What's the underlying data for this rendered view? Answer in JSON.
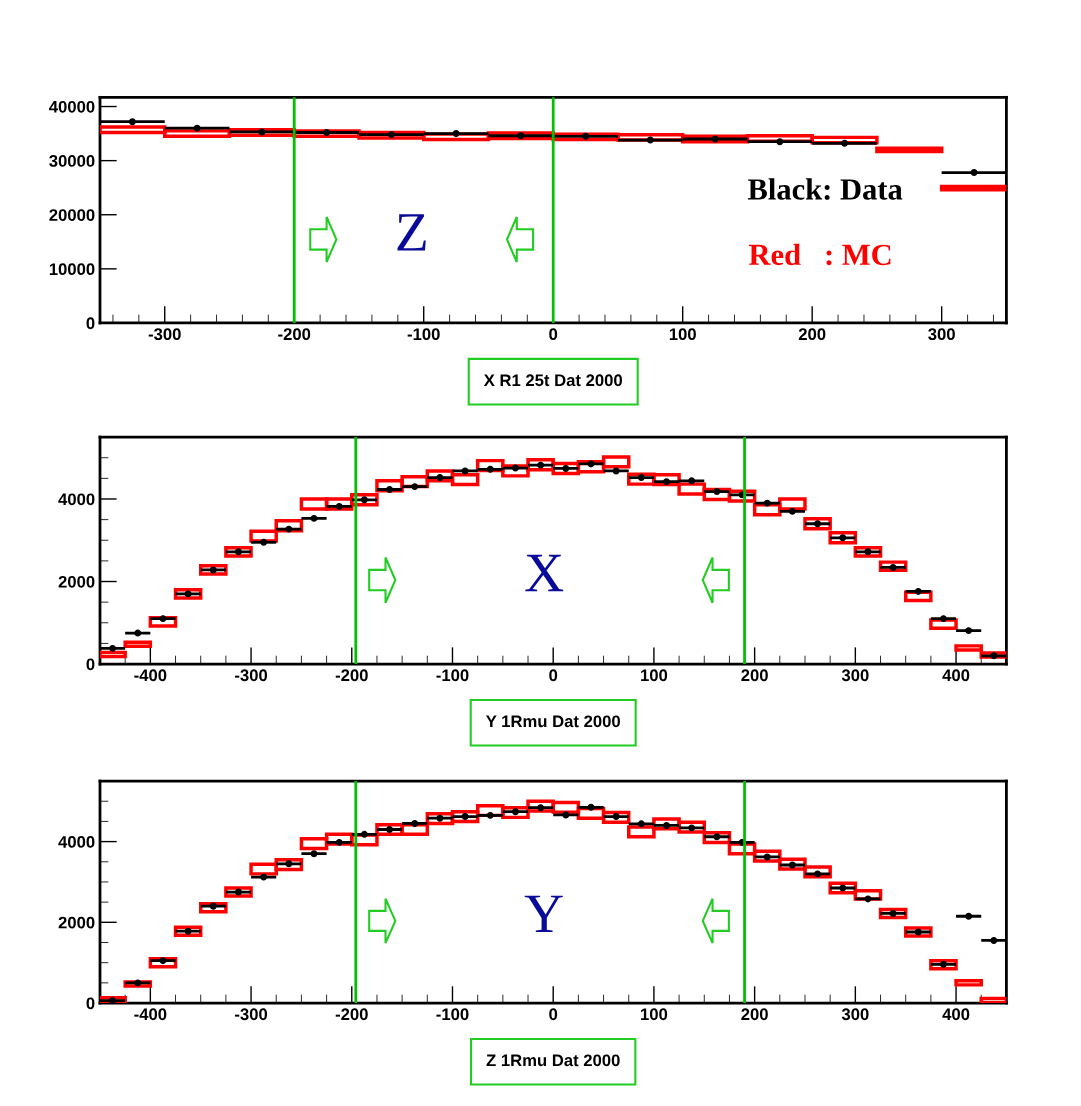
{
  "chart_data": [
    {
      "type": "scatter",
      "xlabel": "X R1 25t Dat 2000",
      "xlim": [
        -350,
        350
      ],
      "xticks": [
        -300,
        -200,
        -100,
        0,
        100,
        200,
        300
      ],
      "ylim": [
        0,
        41700
      ],
      "yticks": [
        0,
        10000,
        20000,
        30000,
        40000
      ],
      "grid": false,
      "legend": false,
      "x": [
        -325,
        -275,
        -225,
        -175,
        -125,
        -75,
        -25,
        25,
        75,
        125,
        175,
        225,
        275,
        325
      ],
      "series": [
        {
          "color": "#000000",
          "marker": "circle",
          "values": [
            37200,
            36000,
            35300,
            35200,
            34800,
            35000,
            34600,
            34500,
            33800,
            34000,
            33500,
            33200,
            null,
            27800
          ],
          "xerrors": [
            25,
            25,
            25,
            25,
            25,
            25,
            25,
            25,
            25,
            25,
            25,
            25,
            null,
            25
          ]
        },
        {
          "type": "bar",
          "color": "#ff0000",
          "base": [
            35200,
            34500,
            34700,
            34500,
            34200,
            33900,
            34100,
            33900,
            33800,
            33500,
            33600,
            33300,
            31700,
            24600
          ],
          "values": [
            1000,
            1000,
            1000,
            1000,
            1000,
            1000,
            1000,
            1000,
            1000,
            1000,
            1000,
            1000,
            600,
            600
          ]
        }
      ],
      "ref_lines": [
        {
          "axis": "x",
          "value": -200,
          "color": "#00c000"
        },
        {
          "axis": "x",
          "value": 0,
          "color": "#00c000"
        }
      ],
      "annotations": [
        "Z",
        "Black: Data",
        "Red   : MC"
      ]
    },
    {
      "type": "scatter",
      "xlabel": "Y 1Rmu Dat 2000",
      "xlim": [
        -450,
        450
      ],
      "xticks": [
        -400,
        -300,
        -200,
        -100,
        0,
        100,
        200,
        300,
        400
      ],
      "ylim": [
        0,
        5500
      ],
      "yticks": [
        0,
        2000,
        4000
      ],
      "grid": false,
      "legend": false,
      "x": [
        -437.5,
        -412.5,
        -387.5,
        -362.5,
        -337.5,
        -312.5,
        -287.5,
        -262.5,
        -237.5,
        -212.5,
        -187.5,
        -162.5,
        -137.5,
        -112.5,
        -87.5,
        -62.5,
        -37.5,
        -12.5,
        12.5,
        37.5,
        62.5,
        87.5,
        112.5,
        137.5,
        162.5,
        187.5,
        212.5,
        237.5,
        262.5,
        287.5,
        312.5,
        337.5,
        362.5,
        387.5,
        412.5,
        437.5
      ],
      "series": [
        {
          "color": "#000000",
          "marker": "circle",
          "values": [
            380,
            750,
            1100,
            1700,
            2280,
            2720,
            2950,
            3270,
            3530,
            3820,
            3980,
            4230,
            4300,
            4520,
            4680,
            4720,
            4750,
            4820,
            4740,
            4850,
            4680,
            4520,
            4420,
            4440,
            4180,
            4100,
            3900,
            3700,
            3400,
            3060,
            2720,
            2340,
            1760,
            1100,
            810,
            200
          ],
          "xerrors": [
            12.5,
            12.5,
            12.5,
            12.5,
            12.5,
            12.5,
            12.5,
            12.5,
            12.5,
            12.5,
            12.5,
            12.5,
            12.5,
            12.5,
            12.5,
            12.5,
            12.5,
            12.5,
            12.5,
            12.5,
            12.5,
            12.5,
            12.5,
            12.5,
            12.5,
            12.5,
            12.5,
            12.5,
            12.5,
            12.5,
            12.5,
            12.5,
            12.5,
            12.5,
            12.5,
            12.5
          ]
        },
        {
          "type": "bar",
          "color": "#ff0000",
          "base": [
            180,
            430,
            920,
            1600,
            2180,
            2620,
            2980,
            3230,
            3760,
            3760,
            3860,
            4200,
            4300,
            4440,
            4350,
            4690,
            4560,
            4710,
            4620,
            4660,
            4780,
            4360,
            4350,
            4120,
            3990,
            3950,
            3620,
            3760,
            3280,
            2940,
            2620,
            2270,
            1540,
            870,
            340,
            170
          ],
          "values": [
            100,
            100,
            200,
            200,
            200,
            200,
            240,
            240,
            240,
            240,
            240,
            240,
            240,
            240,
            240,
            240,
            240,
            240,
            240,
            240,
            240,
            240,
            240,
            240,
            240,
            240,
            240,
            240,
            240,
            240,
            200,
            200,
            200,
            200,
            100,
            100
          ]
        }
      ],
      "ref_lines": [
        {
          "axis": "x",
          "value": -196,
          "color": "#00c000"
        },
        {
          "axis": "x",
          "value": 190,
          "color": "#00c000"
        }
      ],
      "annotations": [
        "X"
      ]
    },
    {
      "type": "scatter",
      "xlabel": "Z 1Rmu Dat 2000",
      "xlim": [
        -450,
        450
      ],
      "xticks": [
        -400,
        -300,
        -200,
        -100,
        0,
        100,
        200,
        300,
        400
      ],
      "ylim": [
        0,
        5500
      ],
      "yticks": [
        0,
        2000,
        4000
      ],
      "grid": false,
      "legend": false,
      "x": [
        -437.5,
        -412.5,
        -387.5,
        -362.5,
        -337.5,
        -312.5,
        -287.5,
        -262.5,
        -237.5,
        -212.5,
        -187.5,
        -162.5,
        -137.5,
        -112.5,
        -87.5,
        -62.5,
        -37.5,
        -12.5,
        12.5,
        37.5,
        62.5,
        87.5,
        112.5,
        137.5,
        162.5,
        187.5,
        212.5,
        237.5,
        262.5,
        287.5,
        312.5,
        337.5,
        362.5,
        387.5,
        412.5,
        437.5
      ],
      "series": [
        {
          "color": "#000000",
          "marker": "circle",
          "values": [
            60,
            500,
            1050,
            1780,
            2400,
            2750,
            3120,
            3450,
            3700,
            3980,
            4180,
            4300,
            4450,
            4580,
            4620,
            4650,
            4740,
            4840,
            4660,
            4850,
            4620,
            4440,
            4400,
            4340,
            4120,
            3980,
            3620,
            3420,
            3200,
            2850,
            2580,
            2220,
            1760,
            960,
            2150,
            1550
          ],
          "xerrors": [
            12.5,
            12.5,
            12.5,
            12.5,
            12.5,
            12.5,
            12.5,
            12.5,
            12.5,
            12.5,
            12.5,
            12.5,
            12.5,
            12.5,
            12.5,
            12.5,
            12.5,
            12.5,
            12.5,
            12.5,
            12.5,
            12.5,
            12.5,
            12.5,
            12.5,
            12.5,
            12.5,
            12.5,
            12.5,
            12.5,
            12.5,
            12.5,
            12.5,
            12.5,
            12.5,
            12.5
          ]
        },
        {
          "type": "bar",
          "color": "#ff0000",
          "base": [
            30,
            420,
            900,
            1680,
            2260,
            2650,
            3200,
            3310,
            3830,
            3940,
            3920,
            4180,
            4180,
            4450,
            4500,
            4650,
            4600,
            4760,
            4730,
            4580,
            4480,
            4120,
            4320,
            4240,
            3980,
            3700,
            3520,
            3320,
            3130,
            2730,
            2580,
            2120,
            1660,
            850,
            450,
            10
          ],
          "values": [
            100,
            100,
            200,
            200,
            200,
            200,
            240,
            240,
            240,
            240,
            240,
            240,
            240,
            240,
            240,
            240,
            240,
            240,
            240,
            240,
            240,
            240,
            240,
            240,
            240,
            240,
            240,
            240,
            240,
            240,
            200,
            200,
            200,
            200,
            100,
            100
          ]
        }
      ],
      "ref_lines": [
        {
          "axis": "x",
          "value": -196,
          "color": "#00c000"
        },
        {
          "axis": "x",
          "value": 190,
          "color": "#00c000"
        }
      ],
      "annotations": [
        "Y"
      ]
    }
  ]
}
